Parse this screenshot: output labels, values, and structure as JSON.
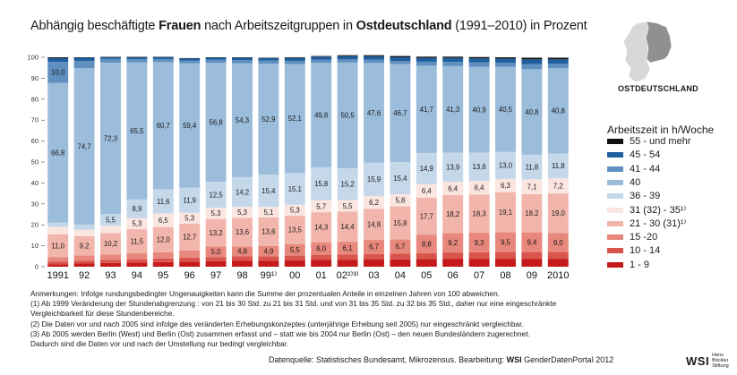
{
  "title": {
    "part1": "Abhängig beschäftigte ",
    "bold1": "Frauen",
    "part2": " nach Arbeitszeitgruppen in ",
    "bold2": "Ostdeutschland",
    "part3": " (1991–2010) in Prozent"
  },
  "map_label": "OSTDEUTSCHLAND",
  "colors": {
    "c55": "#111111",
    "c45": "#1f5f9e",
    "c41": "#5f90c0",
    "c40": "#9bbcdb",
    "c36": "#c5d8ea",
    "c31": "#fbe5e0",
    "c21": "#f1b5ab",
    "c15": "#e8877b",
    "c10": "#d8544c",
    "c1": "#c41a1a",
    "map_east": "#909090",
    "map_west": "#d8d8d8"
  },
  "legend": {
    "title": "Arbeitszeit in h/Woche",
    "items": [
      {
        "label": "55 - und mehr",
        "color": "#111111"
      },
      {
        "label": "45 - 54",
        "color": "#1f5f9e"
      },
      {
        "label": "41 - 44",
        "color": "#5f90c0"
      },
      {
        "label": "40",
        "color": "#9bbcdb"
      },
      {
        "label": "36 - 39",
        "color": "#c5d8ea"
      },
      {
        "label": "31 (32) - 35¹⁾",
        "color": "#fbe5e0"
      },
      {
        "label": "21 - 30 (31)¹⁾",
        "color": "#f1b5ab"
      },
      {
        "label": "15 -20",
        "color": "#e8877b"
      },
      {
        "label": "10 - 14",
        "color": "#d8544c"
      },
      {
        "label": "1 - 9",
        "color": "#c41a1a"
      }
    ]
  },
  "chart_data": {
    "type": "bar",
    "stacked": true,
    "ylim": [
      0,
      100
    ],
    "yticks": [
      0,
      10,
      20,
      30,
      40,
      50,
      60,
      70,
      80,
      90,
      100
    ],
    "grid": false,
    "legend_position": "right",
    "categories": [
      "1991",
      "92",
      "93",
      "94",
      "95",
      "96",
      "97",
      "98",
      "99¹⁾",
      "00",
      "01",
      "02²⁾³⁾",
      "03",
      "04",
      "05",
      "06",
      "07",
      "08",
      "09",
      "2010"
    ],
    "series": [
      {
        "name": "1 - 9",
        "color": "#c41a1a",
        "values": [
          1.2,
          1.5,
          1.8,
          2.0,
          2.2,
          2.4,
          2.6,
          2.8,
          2.8,
          3.0,
          3.2,
          3.2,
          3.4,
          3.5,
          3.6,
          3.8,
          3.8,
          3.8,
          3.8,
          3.8
        ]
      },
      {
        "name": "10 - 14",
        "color": "#d8544c",
        "values": [
          1.3,
          1.4,
          1.5,
          1.6,
          1.7,
          1.9,
          2.0,
          2.1,
          2.2,
          2.3,
          2.5,
          2.6,
          2.7,
          2.8,
          2.9,
          3.0,
          3.1,
          3.2,
          3.2,
          3.2
        ]
      },
      {
        "name": "15 -20",
        "color": "#e8877b",
        "values": [
          2.0,
          2.5,
          2.6,
          2.8,
          3.0,
          3.5,
          5.0,
          4.8,
          4.9,
          5.5,
          6.0,
          6.1,
          6.7,
          6.7,
          8.8,
          9.2,
          9.3,
          9.5,
          9.4,
          9.0
        ]
      },
      {
        "name": "21 - 30 (31)¹⁾",
        "color": "#f1b5ab",
        "values": [
          11.0,
          9.2,
          10.2,
          11.5,
          12.0,
          12.7,
          13.2,
          13.6,
          13.6,
          13.5,
          14.3,
          14.4,
          14.8,
          15.8,
          17.7,
          18.2,
          18.3,
          19.1,
          18.2,
          19.0
        ]
      },
      {
        "name": "31 (32) - 35¹⁾",
        "color": "#fbe5e0",
        "values": [
          3.5,
          3.0,
          3.5,
          5.3,
          6.5,
          5.3,
          5.3,
          5.3,
          5.1,
          5.3,
          5.7,
          5.5,
          6.2,
          5.8,
          6.4,
          6.4,
          6.4,
          6.3,
          7.1,
          7.2
        ]
      },
      {
        "name": "36 - 39",
        "color": "#c5d8ea",
        "values": [
          2.0,
          2.5,
          5.5,
          8.9,
          11.6,
          11.9,
          12.5,
          14.2,
          15.4,
          15.1,
          15.8,
          15.2,
          15.9,
          15.4,
          14.9,
          13.9,
          13.6,
          13.0,
          11.8,
          11.8
        ]
      },
      {
        "name": "40",
        "color": "#9bbcdb",
        "values": [
          66.8,
          74.7,
          72.3,
          65.5,
          60.7,
          59.4,
          56.8,
          54.3,
          52.9,
          52.1,
          49.8,
          50.5,
          47.6,
          46.7,
          41.7,
          41.3,
          40.9,
          40.5,
          40.8,
          40.8
        ]
      },
      {
        "name": "41 - 44",
        "color": "#5f90c0",
        "values": [
          10.0,
          3.5,
          1.8,
          1.5,
          1.4,
          1.4,
          1.4,
          1.5,
          1.5,
          1.5,
          1.5,
          1.5,
          1.5,
          1.5,
          1.9,
          2.0,
          2.1,
          2.0,
          2.4,
          2.2
        ]
      },
      {
        "name": "45 - 54",
        "color": "#1f5f9e",
        "values": [
          1.8,
          1.5,
          0.8,
          0.9,
          0.9,
          0.9,
          1.0,
          1.2,
          1.2,
          1.4,
          1.5,
          1.6,
          1.7,
          1.8,
          1.8,
          1.9,
          2.0,
          2.0,
          2.3,
          2.0
        ]
      },
      {
        "name": "55 - und mehr",
        "color": "#111111",
        "values": [
          0.4,
          0.2,
          0.2,
          0.2,
          0.2,
          0.2,
          0.2,
          0.2,
          0.2,
          0.3,
          0.3,
          0.4,
          0.5,
          0.6,
          0.6,
          0.6,
          0.6,
          0.6,
          0.8,
          0.8
        ]
      }
    ],
    "value_labels": {
      "41 - 44": [
        10.0,
        null,
        null,
        null,
        null,
        null,
        null,
        null,
        null,
        null,
        null,
        null,
        null,
        null,
        null,
        null,
        null,
        null,
        null,
        null
      ],
      "40": [
        66.8,
        74.7,
        72.3,
        65.5,
        60.7,
        59.4,
        56.8,
        54.3,
        52.9,
        52.1,
        49.8,
        50.5,
        47.6,
        46.7,
        41.7,
        41.3,
        40.9,
        40.5,
        40.8,
        40.8
      ],
      "36 - 39": [
        null,
        null,
        5.5,
        8.9,
        11.6,
        11.9,
        12.5,
        14.2,
        15.4,
        15.1,
        15.8,
        15.2,
        15.9,
        15.4,
        14.9,
        13.9,
        13.6,
        13.0,
        11.8,
        11.8
      ],
      "31 (32) - 35¹⁾": [
        null,
        null,
        null,
        5.3,
        6.5,
        5.3,
        5.3,
        5.3,
        5.1,
        5.3,
        5.7,
        5.5,
        6.2,
        5.8,
        6.4,
        6.4,
        6.4,
        6.3,
        7.1,
        7.2
      ],
      "21 - 30 (31)¹⁾": [
        11.0,
        9.2,
        10.2,
        11.5,
        12.0,
        12.7,
        13.2,
        13.6,
        13.6,
        13.5,
        14.3,
        14.4,
        14.8,
        15.8,
        17.7,
        18.2,
        18.3,
        19.1,
        18.2,
        19.0
      ],
      "15 -20": [
        null,
        null,
        null,
        null,
        null,
        null,
        5.0,
        4.8,
        4.9,
        5.5,
        6.0,
        6.1,
        6.7,
        6.7,
        8.8,
        9.2,
        9.3,
        9.5,
        9.4,
        9.0
      ]
    }
  },
  "notes": [
    "Anmerkungen: Infolge rundungsbedingter Ungenauigkeiten kann die Summe der prozentualen Anteile in einzelnen Jahren von 100 abweichen.",
    "(1) Ab 1999 Veränderung der Stundenabgrenzung : von 21 bis 30 Std. zu 21 bis 31 Std. und von 31 bis 35 Std. zu 32 bis 35 Std., daher nur eine eingeschränkte",
    "Vergleichbarkeit für diese Stundenbereiche.",
    "(2) Die Daten vor und nach 2005 sind infolge des veränderten Erhebungskonzeptes (unterjährige Erhebung seit 2005) nur eingeschränkt vergleichbar.",
    "(3) Ab 2005 werden Berlin (West) und Berlin (Ost) zusammen erfasst und – statt wie bis 2004 nur Berlin (Ost) – den neuen Bundesländern zugerechnet.",
    "Dadurch sind die Daten vor und nach der Umstellung nur bedingt vergleichbar."
  ],
  "source": {
    "text": "Datenquelle: Statistisches Bundesamt, Mikrozensus. Bearbeitung: ",
    "bold": "WSI",
    "text2": " GenderDatenPortal 2012"
  },
  "logo": {
    "wsi": "WSI",
    "line1": "Hans Böckler",
    "line2": "Stiftung"
  }
}
